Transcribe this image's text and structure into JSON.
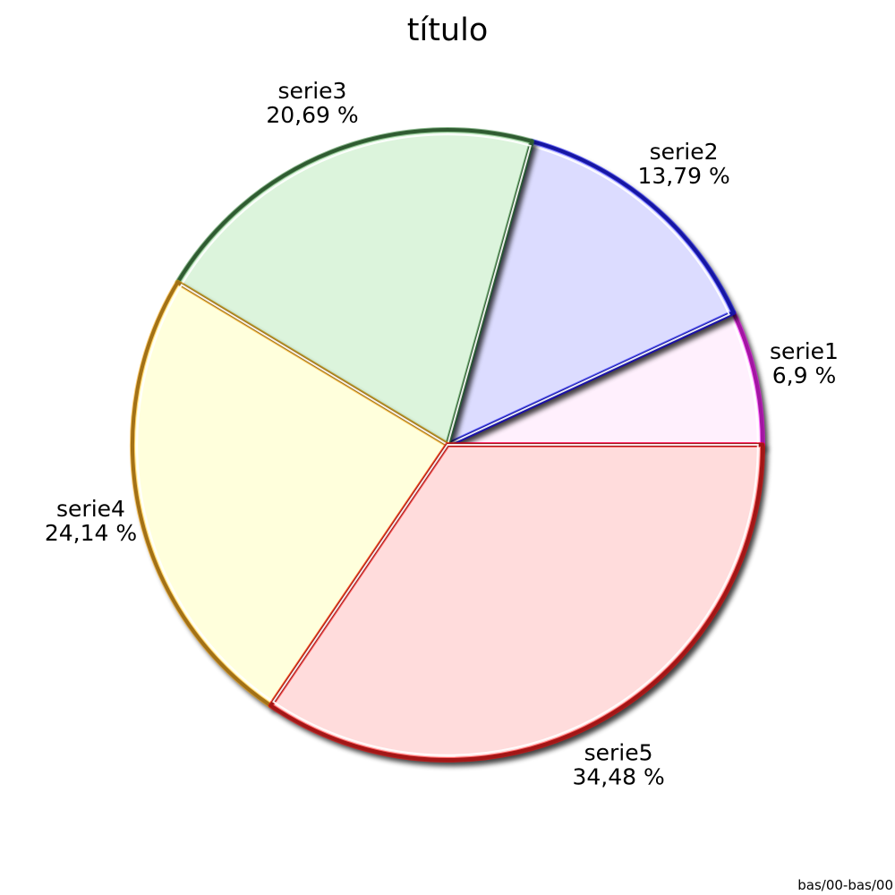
{
  "chart_data": {
    "type": "pie",
    "title": "título",
    "slices": [
      {
        "name": "serie1",
        "value": 6.9,
        "label": "6,9 %",
        "fill": "#fff0fd",
        "edge": "#ff00ff"
      },
      {
        "name": "serie2",
        "value": 13.79,
        "label": "13,79 %",
        "fill": "#dcdcff",
        "edge": "#0000ff"
      },
      {
        "name": "serie3",
        "value": 20.69,
        "label": "20,69 %",
        "fill": "#dcf4dc",
        "edge": "#2e7d32"
      },
      {
        "name": "serie4",
        "value": 24.14,
        "label": "24,14 %",
        "fill": "#ffffdc",
        "edge": "#ffa500"
      },
      {
        "name": "serie5",
        "value": 34.48,
        "label": "34,48 %",
        "fill": "#ffdcdc",
        "edge": "#ff0000"
      }
    ],
    "start_angle_deg": 0,
    "direction": "counterclockwise"
  },
  "footer": "bas/00-bas/00"
}
